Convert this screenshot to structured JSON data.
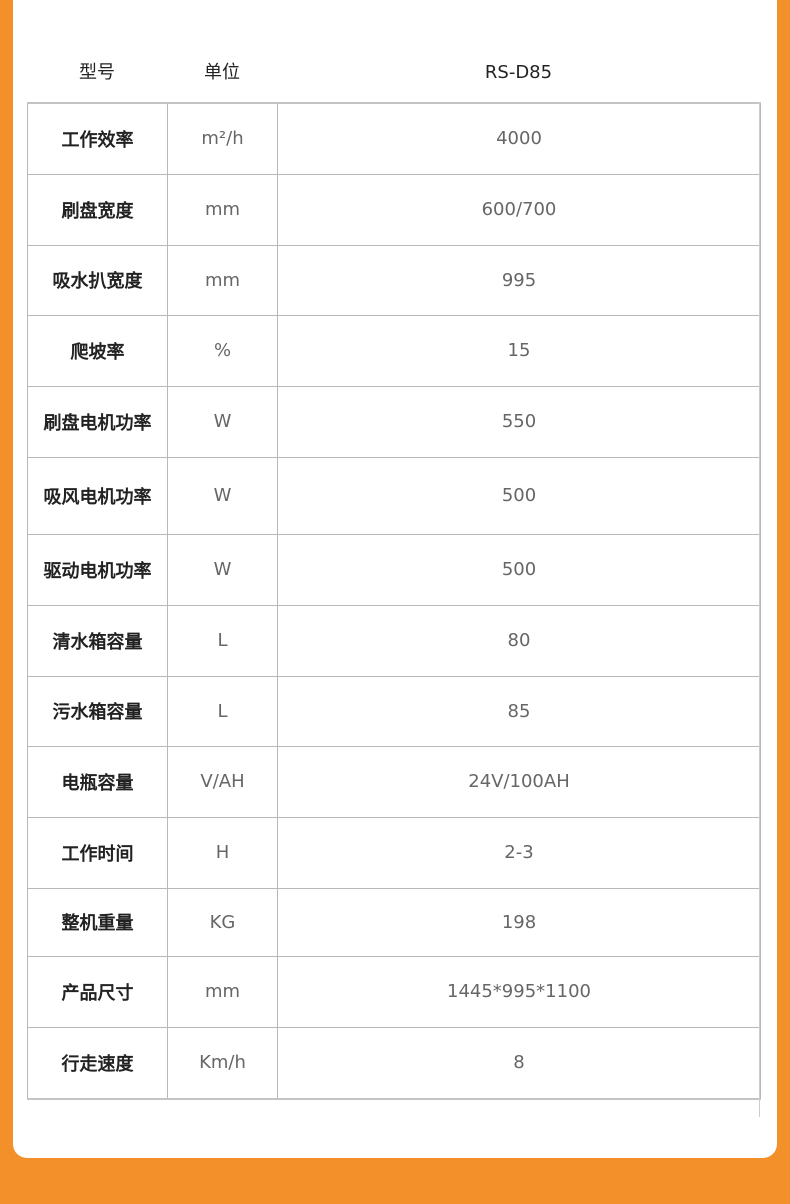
{
  "header": {
    "model_label": "型号",
    "unit_label": "单位",
    "model_value": "RS-D85"
  },
  "rows": [
    {
      "name": "工作效率",
      "unit": "m²/h",
      "value": "4000"
    },
    {
      "name": "刷盘宽度",
      "unit": "mm",
      "value": "600/700"
    },
    {
      "name": "吸水扒宽度",
      "unit": "mm",
      "value": "995"
    },
    {
      "name": "爬坡率",
      "unit": "%",
      "value": "15"
    },
    {
      "name": "刷盘电机功率",
      "unit": "W",
      "value": "550"
    },
    {
      "name": "吸风电机功率",
      "unit": "W",
      "value": "500"
    },
    {
      "name": "驱动电机功率",
      "unit": "W",
      "value": "500"
    },
    {
      "name": "清水箱容量",
      "unit": "L",
      "value": "80"
    },
    {
      "name": "污水箱容量",
      "unit": "L",
      "value": "85"
    },
    {
      "name": "电瓶容量",
      "unit": "V/AH",
      "value": "24V/100AH"
    },
    {
      "name": "工作时间",
      "unit": "H",
      "value": "2-3"
    },
    {
      "name": "整机重量",
      "unit": "KG",
      "value": "198"
    },
    {
      "name": "产品尺寸",
      "unit": "mm",
      "value": "1445*995*1100"
    },
    {
      "name": "行走速度",
      "unit": "Km/h",
      "value": "8"
    }
  ],
  "colors": {
    "background": "#f39029",
    "card": "#ffffff"
  }
}
